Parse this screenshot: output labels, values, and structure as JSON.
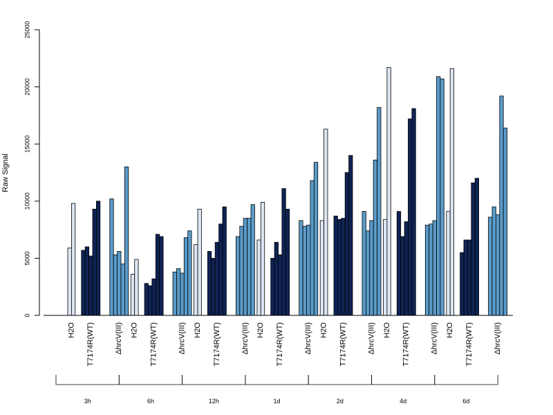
{
  "chart_data": {
    "type": "bar",
    "ylabel": "Raw Signal",
    "ylim": [
      0,
      25000
    ],
    "yticks": [
      0,
      5000,
      10000,
      15000,
      20000,
      25000
    ],
    "timepoints": [
      "3h",
      "6h",
      "12h",
      "1d",
      "2d",
      "4d",
      "6d"
    ],
    "groups": [
      "H2O",
      "T7174R(WT)",
      "ΔhrcV(III)"
    ],
    "colors": {
      "H2O": "#dce6f2",
      "T7174R(WT)": "#0f2354",
      "ΔhrcV(III)": "#5a9bc9"
    },
    "grid": false,
    "series": [
      {
        "timepoint": "3h",
        "H2O": [
          5900,
          9800
        ],
        "T7174R(WT)": [
          5700,
          6000,
          5200,
          9300,
          10000
        ],
        "ΔhrcV(III)": [
          10200,
          5300,
          5600,
          4500,
          13000
        ]
      },
      {
        "timepoint": "6h",
        "H2O": [
          3600,
          4900
        ],
        "T7174R(WT)": [
          2800,
          2600,
          3200,
          7100,
          6900
        ],
        "ΔhrcV(III)": [
          3800,
          4100,
          3700,
          6800,
          7400
        ]
      },
      {
        "timepoint": "12h",
        "H2O": [
          6200,
          9300
        ],
        "T7174R(WT)": [
          5600,
          5000,
          6400,
          8000,
          9500
        ],
        "ΔhrcV(III)": [
          6900,
          7800,
          8500,
          8500,
          9700
        ]
      },
      {
        "timepoint": "1d",
        "H2O": [
          6600,
          9900
        ],
        "T7174R(WT)": [
          5000,
          6400,
          5300,
          11100,
          9300
        ],
        "ΔhrcV(III)": [
          8300,
          7800,
          7900,
          11800,
          13400
        ]
      },
      {
        "timepoint": "2d",
        "H2O": [
          8300,
          16300
        ],
        "T7174R(WT)": [
          8700,
          8400,
          8500,
          12500,
          14000
        ],
        "ΔhrcV(III)": [
          9100,
          7400,
          8300,
          13600,
          18200
        ]
      },
      {
        "timepoint": "4d",
        "H2O": [
          8400,
          21700
        ],
        "T7174R(WT)": [
          9100,
          6900,
          8200,
          17200,
          18100
        ],
        "ΔhrcV(III)": [
          7900,
          8000,
          8300,
          20900,
          20700
        ]
      },
      {
        "timepoint": "6d",
        "H2O": [
          9100,
          21600
        ],
        "T7174R(WT)": [
          5500,
          6600,
          6600,
          11600,
          12000
        ],
        "ΔhrcV(III)": [
          8600,
          9500,
          8800,
          19200,
          16400
        ]
      }
    ]
  }
}
